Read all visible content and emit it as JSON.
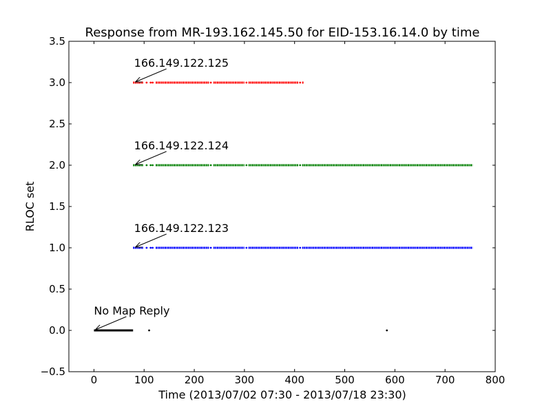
{
  "chart_data": {
    "type": "scatter",
    "title": "Response from MR-193.162.145.50 for EID-153.16.14.0 by time",
    "xlabel": "Time (2013/07/02 07:30 - 2013/07/18 23:30)",
    "ylabel": "RLOC set",
    "xlim": [
      -50,
      800
    ],
    "ylim": [
      -0.5,
      3.5
    ],
    "xticks": [
      "0",
      "100",
      "200",
      "300",
      "400",
      "500",
      "600",
      "700",
      "800"
    ],
    "yticks": [
      "−0.5",
      "0.0",
      "0.5",
      "1.0",
      "1.5",
      "2.0",
      "2.5",
      "3.0",
      "3.5"
    ],
    "grid": false,
    "series": [
      {
        "y": 0,
        "color": "#000000",
        "segments": [
          [
            0,
            78
          ]
        ],
        "points": [
          110,
          584
        ]
      },
      {
        "y": 1,
        "color": "#0000ff",
        "segments": [
          [
            78,
            98
          ],
          [
            123,
            230
          ],
          [
            238,
            300
          ],
          [
            308,
            408
          ],
          [
            415,
            755
          ]
        ],
        "points": [
          105,
          113,
          117,
          233,
          304,
          411
        ]
      },
      {
        "y": 2,
        "color": "#007f00",
        "segments": [
          [
            78,
            98
          ],
          [
            123,
            230
          ],
          [
            238,
            300
          ],
          [
            308,
            408
          ],
          [
            415,
            755
          ]
        ],
        "points": [
          105,
          113,
          117,
          233,
          304,
          411
        ]
      },
      {
        "y": 3,
        "color": "#ff0000",
        "segments": [
          [
            78,
            98
          ],
          [
            123,
            230
          ],
          [
            238,
            300
          ],
          [
            308,
            408
          ],
          [
            415,
            418
          ]
        ],
        "points": [
          105,
          113,
          117,
          233,
          304,
          411
        ]
      }
    ],
    "annotations": [
      {
        "text": "No Map Reply",
        "x": 0,
        "y": 0
      },
      {
        "text": "166.149.122.123",
        "x": 80,
        "y": 1
      },
      {
        "text": "166.149.122.124",
        "x": 80,
        "y": 2
      },
      {
        "text": "166.149.122.125",
        "x": 80,
        "y": 3
      }
    ]
  }
}
